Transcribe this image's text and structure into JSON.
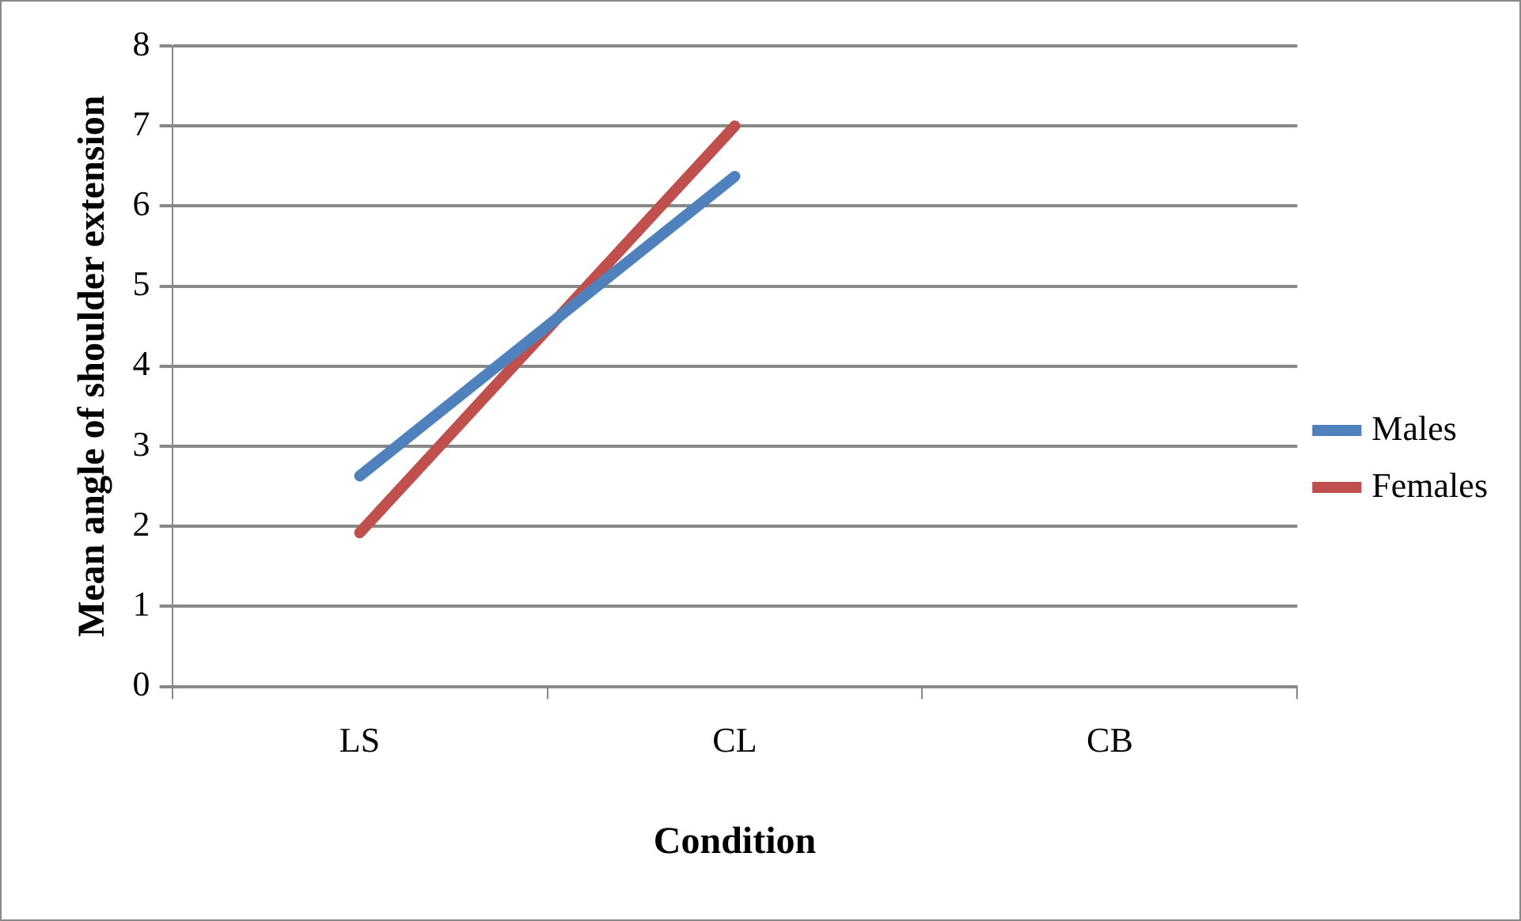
{
  "chart_data": {
    "type": "line",
    "xlabel": "Condition",
    "ylabel": "Mean angle of shoulder extension",
    "categories": [
      "LS",
      "CL",
      "CB"
    ],
    "series": [
      {
        "name": "Males",
        "color": "#4f81bd",
        "values": [
          2.63,
          6.37,
          null
        ]
      },
      {
        "name": "Females",
        "color": "#c0504d",
        "values": [
          1.92,
          7.0,
          null
        ]
      }
    ],
    "ylim": [
      0,
      8
    ],
    "yticks": [
      0,
      1,
      2,
      3,
      4,
      5,
      6,
      7,
      8
    ],
    "grid": "y",
    "legend": "right",
    "marker": "none",
    "line_style": "solid"
  }
}
